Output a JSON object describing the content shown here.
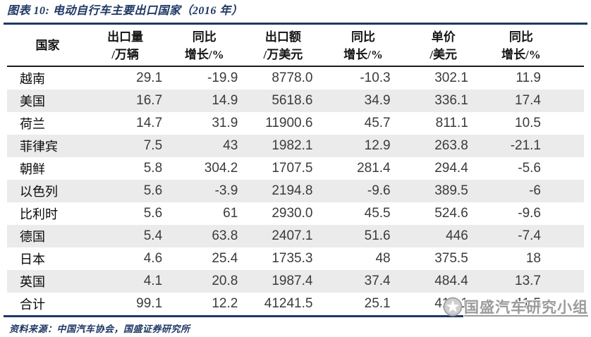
{
  "figure": {
    "title": "图表 10: 电动自行车主要出口国家（2016 年）",
    "source": "资料来源：中国汽车协会，国盛证券研究所"
  },
  "watermark": {
    "text": "国盛汽车研究小组",
    "logo": "star-circle-icon"
  },
  "colors": {
    "navy": "#1F3864",
    "row_alt": "#EBEBEB",
    "number_text": "#3b3b3b",
    "watermark_gray": "#9b9b9b",
    "header_border": "#1a1a1a"
  },
  "chart_data": {
    "type": "table",
    "figure_label": "图表 10",
    "title": "电动自行车主要出口国家（2016 年）",
    "columns": [
      {
        "line1": "国家",
        "line2": ""
      },
      {
        "line1": "出口量",
        "line2": "/万辆"
      },
      {
        "line1": "同比",
        "line2": "增长/%"
      },
      {
        "line1": "出口额",
        "line2": "/万美元"
      },
      {
        "line1": "同比",
        "line2": "增长/%"
      },
      {
        "line1": "单价",
        "line2": "/美元"
      },
      {
        "line1": "同比",
        "line2": "增长/%"
      }
    ],
    "rows": [
      {
        "country": "越南",
        "values": [
          "29.1",
          "-19.9",
          "8778.0",
          "-10.3",
          "302.1",
          "11.9"
        ]
      },
      {
        "country": "美国",
        "values": [
          "16.7",
          "14.9",
          "5618.6",
          "34.9",
          "336.1",
          "17.4"
        ]
      },
      {
        "country": "荷兰",
        "values": [
          "14.7",
          "31.9",
          "11900.6",
          "45.7",
          "811.1",
          "10.5"
        ]
      },
      {
        "country": "菲律宾",
        "values": [
          "7.5",
          "43",
          "1982.1",
          "12.9",
          "263.8",
          "-21.1"
        ]
      },
      {
        "country": "朝鲜",
        "values": [
          "5.8",
          "304.2",
          "1707.5",
          "281.4",
          "294.4",
          "-5.6"
        ]
      },
      {
        "country": "以色列",
        "values": [
          "5.6",
          "-3.9",
          "2194.8",
          "-9.6",
          "389.5",
          "-6"
        ]
      },
      {
        "country": "比利时",
        "values": [
          "5.6",
          "61",
          "2930.0",
          "45.5",
          "524.6",
          "-9.6"
        ]
      },
      {
        "country": "德国",
        "values": [
          "5.4",
          "63.8",
          "2407.1",
          "51.6",
          "446",
          "-7.4"
        ]
      },
      {
        "country": "日本",
        "values": [
          "4.6",
          "25.4",
          "1735.3",
          "48",
          "375.5",
          "18"
        ]
      },
      {
        "country": "英国",
        "values": [
          "4.1",
          "20.8",
          "1987.4",
          "37.4",
          "484.4",
          "13.7"
        ]
      },
      {
        "country": "合计",
        "values": [
          "99.1",
          "12.2",
          "41241.5",
          "25.1",
          "416.1",
          "11.5"
        ]
      }
    ]
  }
}
